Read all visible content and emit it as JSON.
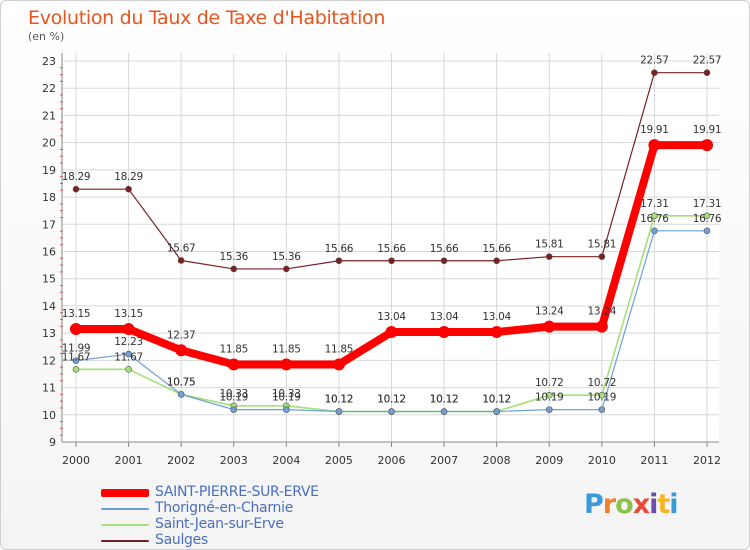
{
  "title": "Evolution du Taux de Taxe d'Habitation",
  "unit": "(en %)",
  "brand": {
    "letters": [
      "P",
      "r",
      "o",
      "x",
      "i",
      "t",
      "i"
    ],
    "colors": [
      "#3a9ad9",
      "#f0802a",
      "#8bc34a",
      "#e84a3a",
      "#6b4ea8",
      "#f2b627",
      "#3a9ad9"
    ]
  },
  "chart_data": {
    "type": "line",
    "title": "Evolution du Taux de Taxe d'Habitation",
    "ylabel": "(en %)",
    "x": [
      "2000",
      "2001",
      "2002",
      "2003",
      "2004",
      "2005",
      "2006",
      "2007",
      "2008",
      "2009",
      "2010",
      "2011",
      "2012"
    ],
    "ylim": [
      9,
      23
    ],
    "yticks": [
      "9",
      "10",
      "11",
      "12",
      "13",
      "14",
      "15",
      "16",
      "17",
      "18",
      "19",
      "20",
      "21",
      "22",
      "23"
    ],
    "grid": true,
    "legend_position": "bottom-left",
    "series": [
      {
        "name": "SAINT-PIERRE-SUR-ERVE",
        "color": "#ff0000",
        "values": [
          13.15,
          13.15,
          12.37,
          11.85,
          11.85,
          11.85,
          13.04,
          13.04,
          13.04,
          13.24,
          13.24,
          19.91,
          19.91
        ],
        "labels": [
          "13.15",
          "13.15",
          "12.37",
          "11.85",
          "11.85",
          "11.85",
          "13.04",
          "13.04",
          "13.04",
          "13.24",
          "13.24",
          "19.91",
          "19.91"
        ]
      },
      {
        "name": "Thorigné-en-Charnie",
        "color": "#6fa0d8",
        "values": [
          11.99,
          12.23,
          10.75,
          10.19,
          10.19,
          10.12,
          10.12,
          10.12,
          10.12,
          10.19,
          10.19,
          16.76,
          16.76
        ],
        "labels": [
          "11.99",
          "12.23",
          "10.75",
          "10.19",
          "10.19",
          "10.12",
          "10.12",
          "10.12",
          "10.12",
          "10.19",
          "10.19",
          "16.76",
          "16.76"
        ]
      },
      {
        "name": "Saint-Jean-sur-Erve",
        "color": "#a6e07a",
        "values": [
          11.67,
          11.67,
          10.75,
          10.33,
          10.33,
          10.12,
          10.12,
          10.12,
          10.12,
          10.72,
          10.72,
          17.31,
          17.31
        ],
        "labels": [
          "11.67",
          "11.67",
          "10.75",
          "10.33",
          "10.33",
          "10.12",
          "10.12",
          "10.12",
          "10.12",
          "10.72",
          "10.72",
          "17.31",
          "17.31"
        ]
      },
      {
        "name": "Saulges",
        "color": "#7a2020",
        "values": [
          18.29,
          18.29,
          15.67,
          15.36,
          15.36,
          15.66,
          15.66,
          15.66,
          15.66,
          15.81,
          15.81,
          22.57,
          22.57
        ],
        "labels": [
          "18.29",
          "18.29",
          "15.67",
          "15.36",
          "15.36",
          "15.66",
          "15.66",
          "15.66",
          "15.66",
          "15.81",
          "15.81",
          "22.57",
          "22.57"
        ]
      }
    ]
  }
}
